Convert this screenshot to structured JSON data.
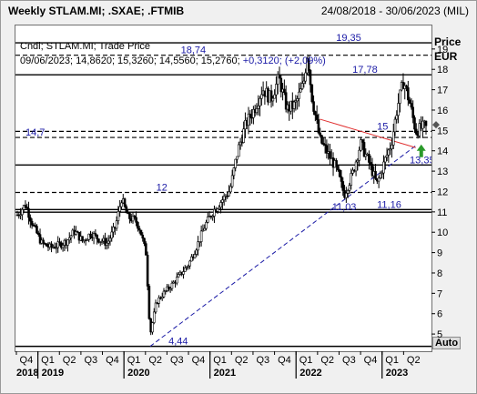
{
  "header": {
    "title": "Weekly STLAM.MI; .SXAE; .FTMIB",
    "date_range": "24/08/2018 - 30/06/2023 (MIL)"
  },
  "info": {
    "line1": "Cndl; STLAM.MI; Trade Price",
    "line2_date": "09/06/2023;",
    "line2_values": "14,8620; 15,3260; 14,5560; 15,2760;",
    "line2_change": "+0,3120; (+2,09%)"
  },
  "axis": {
    "price_label": "Price",
    "currency_label": "EUR",
    "auto_label": "Auto"
  },
  "colors": {
    "candle": "#000000",
    "hline": "#000000",
    "trend_support": "#1a1aa6",
    "trend_resistance": "#e03030",
    "level_text": "#1a1aa6",
    "arrow_up": "#2a9a2a"
  },
  "chart_data": {
    "type": "candlestick",
    "title": "Weekly STLAM.MI; .SXAE; .FTMIB",
    "ylabel": "Price EUR",
    "ylim": [
      4.2,
      20.2
    ],
    "y_ticks": [
      5,
      6,
      7,
      8,
      9,
      10,
      11,
      12,
      13,
      14,
      15,
      16,
      17,
      18,
      19
    ],
    "x_quarters": [
      "Q4",
      "Q1",
      "Q2",
      "Q3",
      "Q4",
      "Q1",
      "Q2",
      "Q3",
      "Q4",
      "Q1",
      "Q2",
      "Q3",
      "Q4",
      "Q1",
      "Q2",
      "Q3",
      "Q4",
      "Q1",
      "Q2"
    ],
    "x_years": [
      "2018",
      "2019",
      "2020",
      "2021",
      "2022",
      "2023"
    ],
    "levels": [
      {
        "value": 19.35,
        "label": "19,35",
        "style": "solid"
      },
      {
        "value": 18.74,
        "label": "18,74",
        "style": "dashed"
      },
      {
        "value": 17.78,
        "label": "17,78",
        "style": "solid"
      },
      {
        "value": 15,
        "label": "15",
        "style": "dashed"
      },
      {
        "value": 14.7,
        "label": "14,7",
        "style": "dashed"
      },
      {
        "value": 13.35,
        "label": "13,35",
        "style": "solid"
      },
      {
        "value": 12,
        "label": "12",
        "style": "dashed"
      },
      {
        "value": 11.16,
        "label": "11,16",
        "style": "solid"
      },
      {
        "value": 11.03,
        "label": "11,03",
        "style": "solid"
      },
      {
        "value": 4.44,
        "label": "4,44",
        "style": "solid"
      }
    ],
    "trendlines": [
      {
        "name": "support",
        "from": {
          "x": 0.325,
          "y": 4.44
        },
        "to": {
          "x": 0.975,
          "y": 14.3
        }
      },
      {
        "name": "resistance",
        "from": {
          "x": 0.74,
          "y": 15.6
        },
        "to": {
          "x": 0.975,
          "y": 14.2
        }
      }
    ],
    "last": {
      "open": 14.862,
      "high": 15.326,
      "low": 14.556,
      "close": 15.276
    },
    "price_path": [
      [
        0.0,
        10.9
      ],
      [
        0.02,
        11.4
      ],
      [
        0.04,
        10.3
      ],
      [
        0.06,
        9.5
      ],
      [
        0.08,
        9.3
      ],
      [
        0.1,
        9.4
      ],
      [
        0.12,
        9.6
      ],
      [
        0.14,
        10.1
      ],
      [
        0.16,
        9.6
      ],
      [
        0.18,
        10.0
      ],
      [
        0.2,
        9.7
      ],
      [
        0.22,
        9.5
      ],
      [
        0.24,
        10.3
      ],
      [
        0.255,
        11.7
      ],
      [
        0.27,
        10.8
      ],
      [
        0.29,
        10.6
      ],
      [
        0.3,
        10.2
      ],
      [
        0.315,
        9.0
      ],
      [
        0.325,
        5.0
      ],
      [
        0.34,
        6.6
      ],
      [
        0.36,
        7.1
      ],
      [
        0.38,
        7.5
      ],
      [
        0.4,
        8.0
      ],
      [
        0.42,
        8.5
      ],
      [
        0.44,
        9.4
      ],
      [
        0.46,
        10.4
      ],
      [
        0.48,
        11.1
      ],
      [
        0.5,
        11.6
      ],
      [
        0.52,
        12.1
      ],
      [
        0.54,
        14.1
      ],
      [
        0.56,
        15.4
      ],
      [
        0.58,
        16.1
      ],
      [
        0.6,
        17.1
      ],
      [
        0.62,
        16.6
      ],
      [
        0.64,
        17.6
      ],
      [
        0.66,
        16.1
      ],
      [
        0.68,
        16.3
      ],
      [
        0.7,
        17.3
      ],
      [
        0.71,
        18.9
      ],
      [
        0.72,
        16.8
      ],
      [
        0.74,
        14.6
      ],
      [
        0.76,
        13.9
      ],
      [
        0.78,
        13.2
      ],
      [
        0.8,
        11.9
      ],
      [
        0.82,
        12.9
      ],
      [
        0.84,
        14.4
      ],
      [
        0.86,
        13.5
      ],
      [
        0.88,
        12.4
      ],
      [
        0.9,
        13.6
      ],
      [
        0.915,
        14.4
      ],
      [
        0.93,
        16.2
      ],
      [
        0.945,
        17.5
      ],
      [
        0.96,
        16.4
      ],
      [
        0.975,
        15.0
      ],
      [
        1.0,
        15.3
      ]
    ]
  }
}
